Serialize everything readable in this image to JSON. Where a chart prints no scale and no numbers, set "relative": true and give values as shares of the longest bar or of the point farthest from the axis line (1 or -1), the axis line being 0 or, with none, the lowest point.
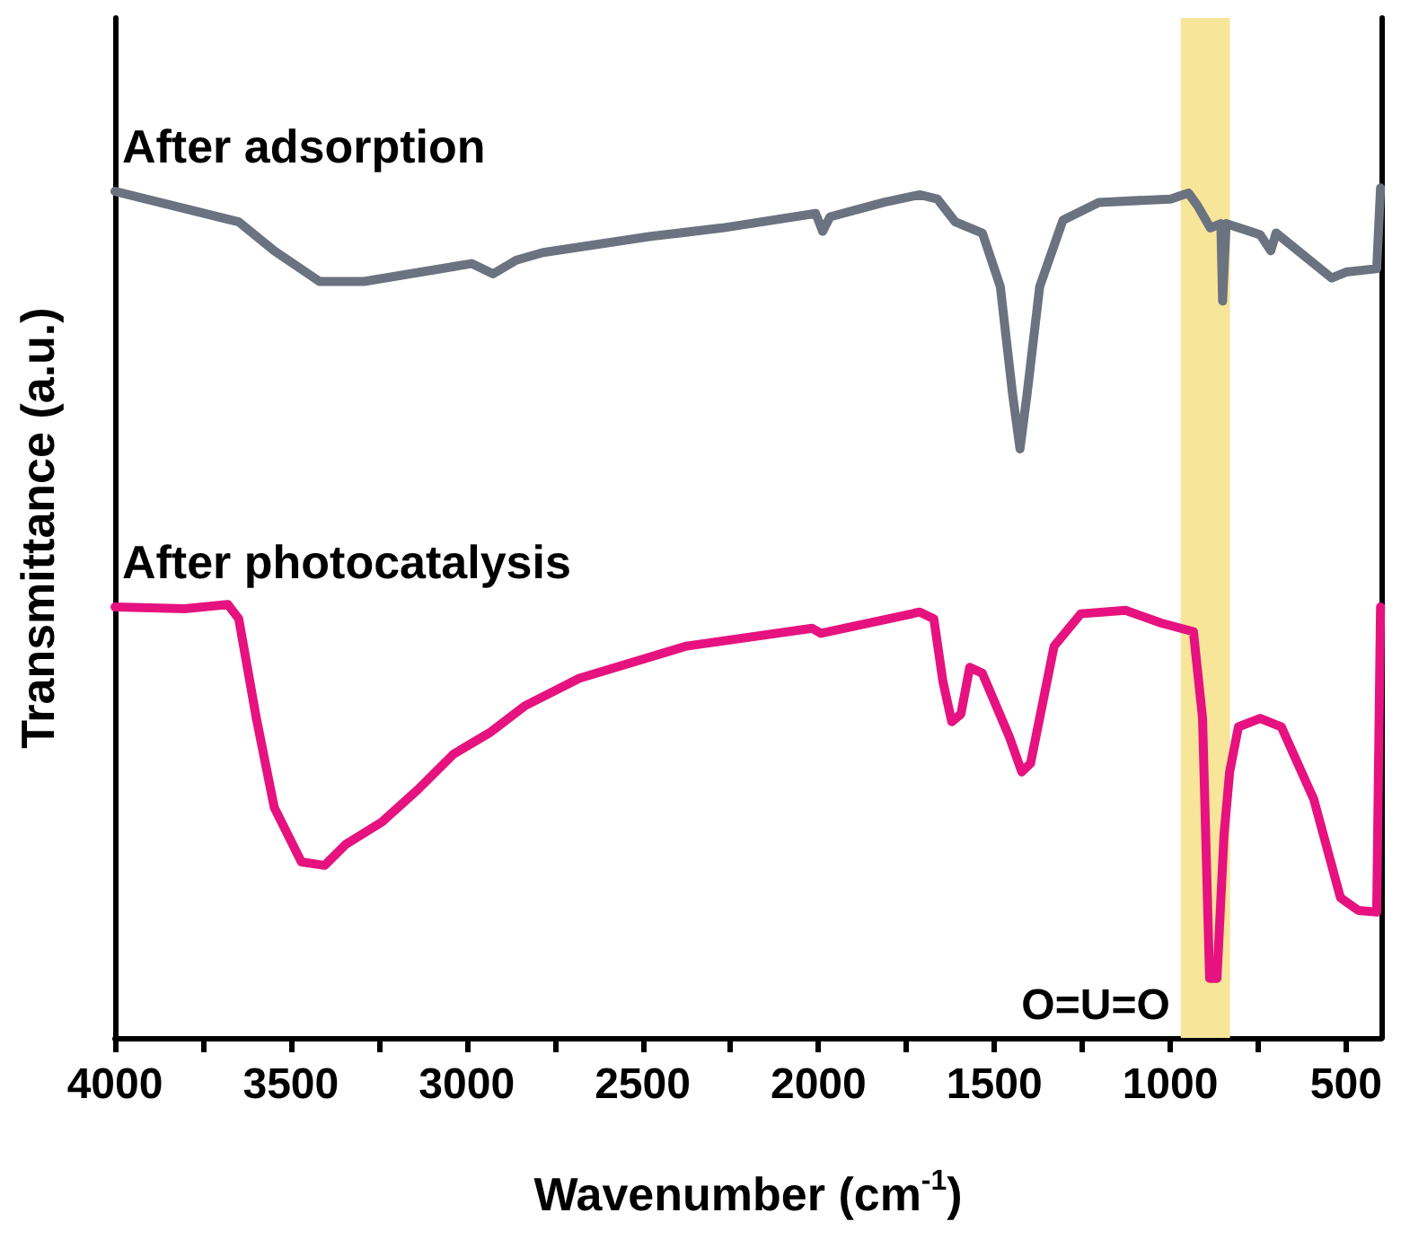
{
  "chart_data": {
    "type": "line",
    "relative": true,
    "xlabel": "Wavenumber (cm$^{-1}$)",
    "ylabel": "Transmittance (a.u.)",
    "xlim": [
      4000,
      400
    ],
    "xticks": [
      4000,
      {
        "value": 3750,
        "label": null
      },
      3500,
      {
        "value": 3250,
        "label": null
      },
      3000,
      {
        "value": 2750,
        "label": null
      },
      2500,
      {
        "value": 2250,
        "label": null
      },
      2000,
      {
        "value": 1750,
        "label": null
      },
      1500,
      {
        "value": 1250,
        "label": null
      },
      1000,
      {
        "value": 750,
        "label": null
      },
      500
    ],
    "legend": false,
    "grid": false,
    "marker": "none",
    "line_style": "solid",
    "bands": [
      {
        "axis": "x",
        "from": 970,
        "to": 830,
        "label": "O=U=O",
        "color": "#f7e59a"
      }
    ],
    "series": [
      {
        "name": "After adsorption",
        "color": "#6b7280",
        "x": [
          4000,
          3648,
          3547,
          3419,
          3292,
          2986,
          2925,
          2859,
          2783,
          2477,
          2273,
          2008,
          1988,
          1967,
          1814,
          1712,
          1662,
          1611,
          1534,
          1483,
          1448,
          1427,
          1407,
          1371,
          1305,
          1203,
          999,
          948,
          922,
          886,
          856,
          851,
          841,
          744,
          714,
          699,
          541,
          500,
          413,
          402
        ],
        "values": [
          0.996,
          0.96,
          0.926,
          0.89,
          0.89,
          0.911,
          0.899,
          0.915,
          0.924,
          0.943,
          0.953,
          0.97,
          0.949,
          0.966,
          0.983,
          0.992,
          0.987,
          0.96,
          0.947,
          0.884,
          0.757,
          0.693,
          0.757,
          0.884,
          0.962,
          0.983,
          0.987,
          0.994,
          0.979,
          0.953,
          0.958,
          0.867,
          0.958,
          0.945,
          0.926,
          0.947,
          0.894,
          0.901,
          0.905,
          1
        ]
      },
      {
        "name": "After photocatalysis",
        "color": "#e6127f",
        "x": [
          4000,
          3801,
          3679,
          3648,
          3598,
          3547,
          3470,
          3404,
          3343,
          3241,
          3139,
          3037,
          2935,
          2833,
          2680,
          2375,
          2018,
          1993,
          1712,
          1672,
          1646,
          1621,
          1595,
          1570,
          1534,
          1458,
          1422,
          1397,
          1330,
          1254,
          1127,
          1025,
          934,
          908,
          888,
          867,
          847,
          831,
          806,
          744,
          684,
          643,
          592,
          516,
          465,
          413,
          402
        ],
        "values": [
          0.507,
          0.505,
          0.51,
          0.493,
          0.376,
          0.271,
          0.207,
          0.203,
          0.228,
          0.254,
          0.292,
          0.334,
          0.359,
          0.391,
          0.423,
          0.461,
          0.482,
          0.476,
          0.501,
          0.493,
          0.419,
          0.372,
          0.381,
          0.436,
          0.429,
          0.355,
          0.313,
          0.323,
          0.461,
          0.499,
          0.503,
          0.488,
          0.478,
          0.376,
          0.07,
          0.07,
          0.239,
          0.313,
          0.366,
          0.376,
          0.366,
          0.328,
          0.281,
          0.165,
          0.15,
          0.148,
          0.507
        ]
      }
    ]
  }
}
